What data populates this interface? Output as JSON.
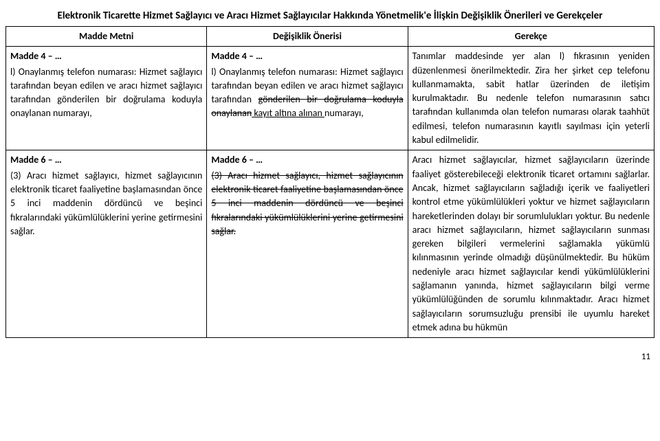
{
  "title": "Elektronik Ticarette Hizmet Sağlayıcı ve Aracı Hizmet Sağlayıcılar Hakkında Yönetmelik'e İlişkin Değişiklik Önerileri ve Gerekçeler",
  "headers": {
    "col1": "Madde Metni",
    "col2": "Değişiklik Önerisi",
    "col3": "Gerekçe"
  },
  "rows": [
    {
      "c1_head": "Madde 4 – …",
      "c1_body": "l) Onaylanmış telefon numarası: Hizmet sağlayıcı tarafından beyan edilen ve aracı hizmet sağlayıcı tarafından gönderilen bir doğrulama koduyla onaylanan numarayı,",
      "c2_head": "Madde 4 – …",
      "c2_p1": "l) Onaylanmış telefon numarası: Hizmet sağlayıcı tarafından beyan edilen ve aracı hizmet sağlayıcı tarafından ",
      "c2_s1": "gönderilen bir doğrulama koduyla onaylanan",
      "c2_u1": " kayıt altına alınan ",
      "c2_p2": "numarayı,",
      "c3": "Tanımlar maddesinde yer alan l) fıkrasının yeniden düzenlenmesi önerilmektedir. Zira her şirket cep telefonu kullanmamakta, sabit hatlar üzerinden de iletişim kurulmaktadır. Bu nedenle telefon numarasının satıcı tarafından kullanımda olan telefon numarası olarak taahhüt edilmesi, telefon numarasının kayıtlı sayılması için yeterli kabul edilmelidir."
    },
    {
      "c1_head": "Madde 6 – …",
      "c1_body": "(3) Aracı hizmet sağlayıcı, hizmet sağlayıcının elektronik ticaret faaliyetine başlamasından önce 5 inci maddenin dördüncü ve beşinci fıkralarındaki yükümlülüklerini yerine getirmesini sağlar.",
      "c2_head": "Madde 6 – …",
      "c2_s_full": "(3) Aracı hizmet sağlayıcı, hizmet sağlayıcının elektronik ticaret faaliyetine başlamasından önce 5 inci maddenin dördüncü ve beşinci fıkralarındaki yükümlülüklerini yerine getirmesini sağlar.",
      "c3": "Aracı hizmet sağlayıcılar, hizmet sağlayıcıların üzerinde faaliyet gösterebileceği elektronik ticaret ortamını sağlarlar. Ancak, hizmet sağlayıcıların sağladığı içerik ve faaliyetleri kontrol etme yükümlülükleri yoktur ve hizmet sağlayıcıların hareketlerinden dolayı bir sorumlulukları yoktur. Bu nedenle aracı hizmet sağlayıcıların, hizmet sağlayıcıların sunması gereken bilgileri vermelerini sağlamakla yükümlü kılınmasının yerinde olmadığı düşünülmektedir. Bu hüküm nedeniyle aracı hizmet sağlayıcılar kendi yükümlülüklerini sağlamanın yanında, hizmet sağlayıcıların bilgi verme yükümlülüğünden de sorumlu kılınmaktadır. Aracı hizmet sağlayıcıların sorumsuzluğu prensibi ile uyumlu hareket etmek adına bu hükmün"
    }
  ],
  "page_number": "11"
}
